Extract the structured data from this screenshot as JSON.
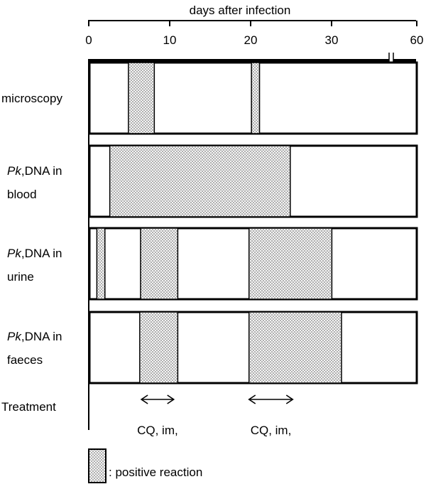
{
  "chart_data": {
    "type": "timeline",
    "xlabel": "days after infection",
    "xlim": [
      0,
      60
    ],
    "xticks": [
      "0",
      "10",
      "20",
      "30",
      "60"
    ],
    "axis_break_after": 30,
    "rows": [
      {
        "label_italic": "",
        "label_rest": "microscopy",
        "label_line2": "",
        "positive_intervals": [
          [
            4.9,
            8.1
          ],
          [
            20.1,
            21.1
          ]
        ]
      },
      {
        "label_italic": "Pk",
        "label_rest": ",DNA in",
        "label_line2": "blood",
        "positive_intervals": [
          [
            2.6,
            24.9
          ]
        ]
      },
      {
        "label_italic": "Pk",
        "label_rest": ",DNA in",
        "label_line2": "urine",
        "positive_intervals": [
          [
            1.0,
            2.0
          ],
          [
            6.4,
            11.0
          ],
          [
            19.8,
            30.1
          ]
        ]
      },
      {
        "label_italic": "Pk",
        "label_rest": ",DNA in",
        "label_line2": "faeces",
        "positive_intervals": [
          [
            6.3,
            11.0
          ],
          [
            19.8,
            33.5
          ]
        ]
      }
    ],
    "treatment": {
      "label": "Treatment",
      "courses": [
        {
          "label": "CQ, im,",
          "range": [
            6.5,
            10.5
          ]
        },
        {
          "label": "CQ, im,",
          "range": [
            19.8,
            25.2
          ]
        }
      ]
    },
    "legend": {
      "text": ": positive reaction"
    },
    "colors": {
      "fill_dots": "#555555",
      "fill_bg": "#f4f4f4",
      "line": "#000000"
    }
  }
}
